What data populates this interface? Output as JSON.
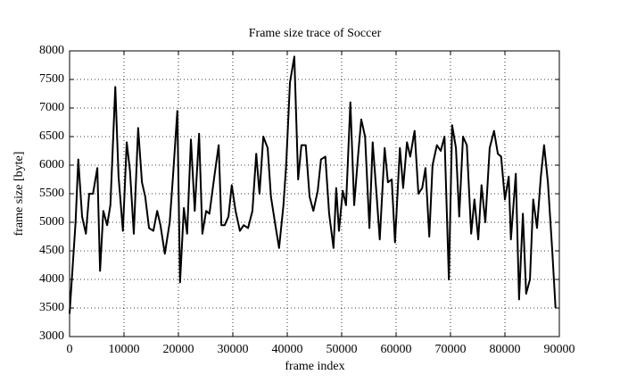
{
  "chart_data": {
    "type": "line",
    "title": "Frame size trace of Soccer",
    "x_label": "frame index",
    "y_label": "frame size [byte]",
    "color": "#000000",
    "grid": true,
    "x": [
      0,
      1100,
      1600,
      2300,
      3000,
      3600,
      4300,
      5100,
      5600,
      6200,
      6900,
      7500,
      8400,
      9000,
      9800,
      10500,
      11100,
      11800,
      12600,
      13300,
      13900,
      14600,
      15400,
      16100,
      16700,
      17500,
      18400,
      19000,
      19800,
      20300,
      21000,
      21600,
      22300,
      23000,
      23800,
      24400,
      25100,
      25700,
      26600,
      27400,
      27900,
      28500,
      29200,
      29800,
      30500,
      31300,
      32000,
      32800,
      33600,
      34300,
      34900,
      35600,
      36400,
      37000,
      37900,
      38500,
      39300,
      39800,
      40500,
      41300,
      42000,
      42600,
      43400,
      44100,
      44800,
      45600,
      46200,
      47000,
      47700,
      48500,
      49000,
      49500,
      50200,
      50800,
      51600,
      52300,
      53000,
      53600,
      54300,
      55100,
      55700,
      56400,
      57000,
      57900,
      58500,
      59200,
      59800,
      60700,
      61300,
      62000,
      62600,
      63400,
      64100,
      64800,
      65400,
      66100,
      66700,
      67500,
      68200,
      68900,
      69700,
      70300,
      71000,
      71600,
      72300,
      73000,
      73800,
      74400,
      75100,
      75700,
      76400,
      77200,
      78000,
      78700,
      79300,
      80000,
      80700,
      81100,
      82000,
      82600,
      83300,
      83900,
      84600,
      85200,
      85900,
      86600,
      87200,
      87900,
      88700,
      89300
    ],
    "values": [
      3400,
      5000,
      6100,
      5100,
      4800,
      5500,
      5500,
      5950,
      4150,
      5200,
      4950,
      5300,
      7370,
      5800,
      4850,
      6400,
      5900,
      4800,
      6650,
      5700,
      5450,
      4900,
      4850,
      5200,
      4950,
      4450,
      5000,
      5800,
      6950,
      3950,
      5250,
      4800,
      6450,
      5200,
      6550,
      4800,
      5200,
      5150,
      5800,
      6350,
      4950,
      4950,
      5100,
      5650,
      5200,
      4850,
      4950,
      4900,
      5200,
      6200,
      5500,
      6500,
      6300,
      5450,
      4900,
      4550,
      5300,
      6000,
      7450,
      7900,
      5750,
      6350,
      6350,
      5450,
      5200,
      5550,
      6100,
      6150,
      5150,
      4550,
      5600,
      4850,
      5550,
      5300,
      7100,
      5300,
      6150,
      6800,
      6500,
      4900,
      6400,
      5500,
      4700,
      6300,
      5700,
      5750,
      4650,
      6300,
      5600,
      6400,
      6150,
      6600,
      5500,
      5600,
      5950,
      4750,
      6000,
      6350,
      6250,
      6500,
      4000,
      6700,
      6300,
      5100,
      6500,
      6350,
      4800,
      5400,
      4700,
      5650,
      5000,
      6300,
      6600,
      6200,
      6150,
      5400,
      5800,
      4700,
      5850,
      3650,
      5150,
      3750,
      4000,
      5400,
      4900,
      5800,
      6350,
      5700,
      4500,
      3500
    ],
    "xlim": [
      0,
      90000
    ],
    "ylim": [
      3000,
      8000
    ],
    "xticks": [
      0,
      10000,
      20000,
      30000,
      40000,
      50000,
      60000,
      70000,
      80000,
      90000
    ],
    "yticks": [
      3000,
      3500,
      4000,
      4500,
      5000,
      5500,
      6000,
      6500,
      7000,
      7500,
      8000
    ]
  }
}
